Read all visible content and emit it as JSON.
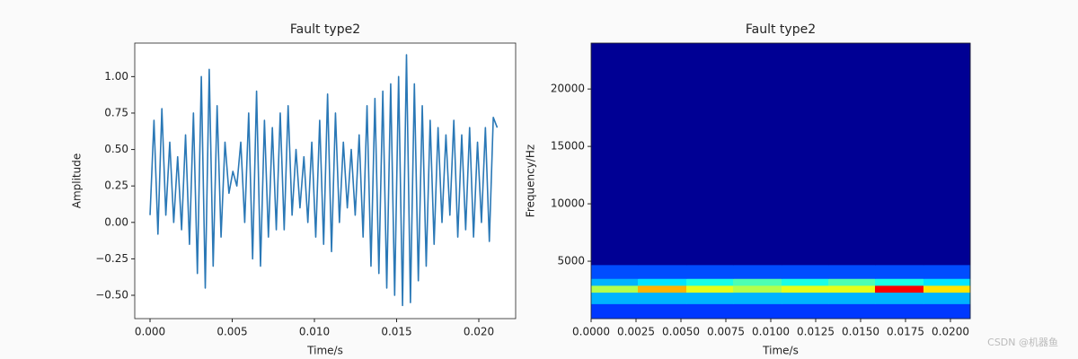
{
  "chart_data": [
    {
      "type": "line",
      "title": "Fault type2",
      "xlabel": "Time/s",
      "ylabel": "Amplitude",
      "color": "#2a78b6",
      "x": [
        0,
        0.00024,
        0.00048,
        0.00072,
        0.00096,
        0.0012,
        0.00144,
        0.00168,
        0.00192,
        0.00216,
        0.0024,
        0.00264,
        0.00288,
        0.00312,
        0.00336,
        0.0036,
        0.00384,
        0.00408,
        0.00432,
        0.00456,
        0.0048,
        0.00504,
        0.00528,
        0.00552,
        0.00576,
        0.006,
        0.00624,
        0.00648,
        0.00672,
        0.00696,
        0.0072,
        0.00744,
        0.00768,
        0.00792,
        0.00816,
        0.0084,
        0.00864,
        0.00888,
        0.00912,
        0.00936,
        0.0096,
        0.00984,
        0.01008,
        0.01032,
        0.01056,
        0.0108,
        0.01104,
        0.01128,
        0.01152,
        0.01176,
        0.012,
        0.01224,
        0.01248,
        0.01272,
        0.01296,
        0.0132,
        0.01344,
        0.01368,
        0.01392,
        0.01416,
        0.0144,
        0.01464,
        0.01488,
        0.01512,
        0.01536,
        0.0156,
        0.01584,
        0.01608,
        0.01632,
        0.01656,
        0.0168,
        0.01704,
        0.01728,
        0.01752,
        0.01776,
        0.018,
        0.01824,
        0.01848,
        0.01872,
        0.01896,
        0.0192,
        0.01944,
        0.01968,
        0.01992,
        0.02016,
        0.0204,
        0.02064,
        0.02088,
        0.02112
      ],
      "values": [
        0.05,
        0.7,
        -0.08,
        0.78,
        0.05,
        0.55,
        0.0,
        0.45,
        -0.05,
        0.6,
        -0.15,
        0.75,
        -0.35,
        1.0,
        -0.45,
        1.05,
        -0.3,
        0.8,
        -0.1,
        0.55,
        0.2,
        0.35,
        0.25,
        0.55,
        0.0,
        0.75,
        -0.25,
        0.9,
        -0.3,
        0.7,
        -0.1,
        0.65,
        -0.05,
        0.75,
        -0.05,
        0.8,
        0.05,
        0.5,
        0.1,
        0.45,
        0.0,
        0.55,
        -0.1,
        0.7,
        -0.15,
        0.88,
        -0.2,
        0.75,
        0.0,
        0.55,
        0.1,
        0.5,
        0.05,
        0.6,
        -0.1,
        0.8,
        -0.3,
        0.85,
        -0.35,
        0.9,
        -0.45,
        0.95,
        -0.5,
        1.0,
        -0.57,
        1.15,
        -0.55,
        0.95,
        -0.4,
        0.8,
        -0.3,
        0.7,
        -0.15,
        0.65,
        0.0,
        0.6,
        0.05,
        0.7,
        -0.1,
        0.6,
        -0.05,
        0.65,
        -0.1,
        0.55,
        0.0,
        0.65,
        -0.13,
        0.72,
        0.65
      ],
      "xlim": [
        -0.00093,
        0.02224
      ],
      "ylim": [
        -0.66,
        1.23
      ],
      "xticks": [
        {
          "value": 0,
          "label": "0.000"
        },
        {
          "value": 0.005,
          "label": "0.005"
        },
        {
          "value": 0.01,
          "label": "0.010"
        },
        {
          "value": 0.015,
          "label": "0.015"
        },
        {
          "value": 0.02,
          "label": "0.020"
        }
      ],
      "yticks": [
        {
          "value": -0.5,
          "label": "−0.50"
        },
        {
          "value": -0.25,
          "label": "−0.25"
        },
        {
          "value": 0,
          "label": "0.00"
        },
        {
          "value": 0.25,
          "label": "0.25"
        },
        {
          "value": 0.5,
          "label": "0.50"
        },
        {
          "value": 0.75,
          "label": "0.75"
        },
        {
          "value": 1,
          "label": "1.00"
        }
      ]
    },
    {
      "type": "heatmap",
      "title": "Fault type2",
      "xlabel": "Time/s",
      "ylabel": "Frequency/Hz",
      "colormap": "jet",
      "zlim": [
        0,
        1
      ],
      "xbins": [
        0,
        0.0026,
        0.0053,
        0.0079,
        0.0106,
        0.0132,
        0.0158,
        0.0185,
        0.0211
      ],
      "ybins": [
        0,
        1300,
        2300,
        2900,
        3500,
        4700,
        24000
      ],
      "z": [
        [
          0.18,
          0.18,
          0.18,
          0.18,
          0.18,
          0.18,
          0.18,
          0.18
        ],
        [
          0.3,
          0.3,
          0.3,
          0.3,
          0.3,
          0.3,
          0.3,
          0.3
        ],
        [
          0.55,
          0.7,
          0.6,
          0.55,
          0.6,
          0.6,
          0.88,
          0.65
        ],
        [
          0.3,
          0.35,
          0.4,
          0.45,
          0.4,
          0.45,
          0.4,
          0.35
        ],
        [
          0.2,
          0.2,
          0.2,
          0.2,
          0.2,
          0.2,
          0.2,
          0.2
        ],
        [
          0.02,
          0.02,
          0.02,
          0.02,
          0.02,
          0.02,
          0.02,
          0.02
        ]
      ],
      "xlim": [
        0,
        0.0211
      ],
      "ylim": [
        0,
        24000
      ],
      "xticks": [
        {
          "value": 0,
          "label": "0.0000"
        },
        {
          "value": 0.0025,
          "label": "0.0025"
        },
        {
          "value": 0.005,
          "label": "0.0050"
        },
        {
          "value": 0.0075,
          "label": "0.0075"
        },
        {
          "value": 0.01,
          "label": "0.0100"
        },
        {
          "value": 0.0125,
          "label": "0.0125"
        },
        {
          "value": 0.015,
          "label": "0.0150"
        },
        {
          "value": 0.0175,
          "label": "0.0175"
        },
        {
          "value": 0.02,
          "label": "0.0200"
        }
      ],
      "yticks": [
        5000,
        10000,
        15000,
        20000
      ]
    }
  ],
  "watermark": "CSDN @机器鱼"
}
